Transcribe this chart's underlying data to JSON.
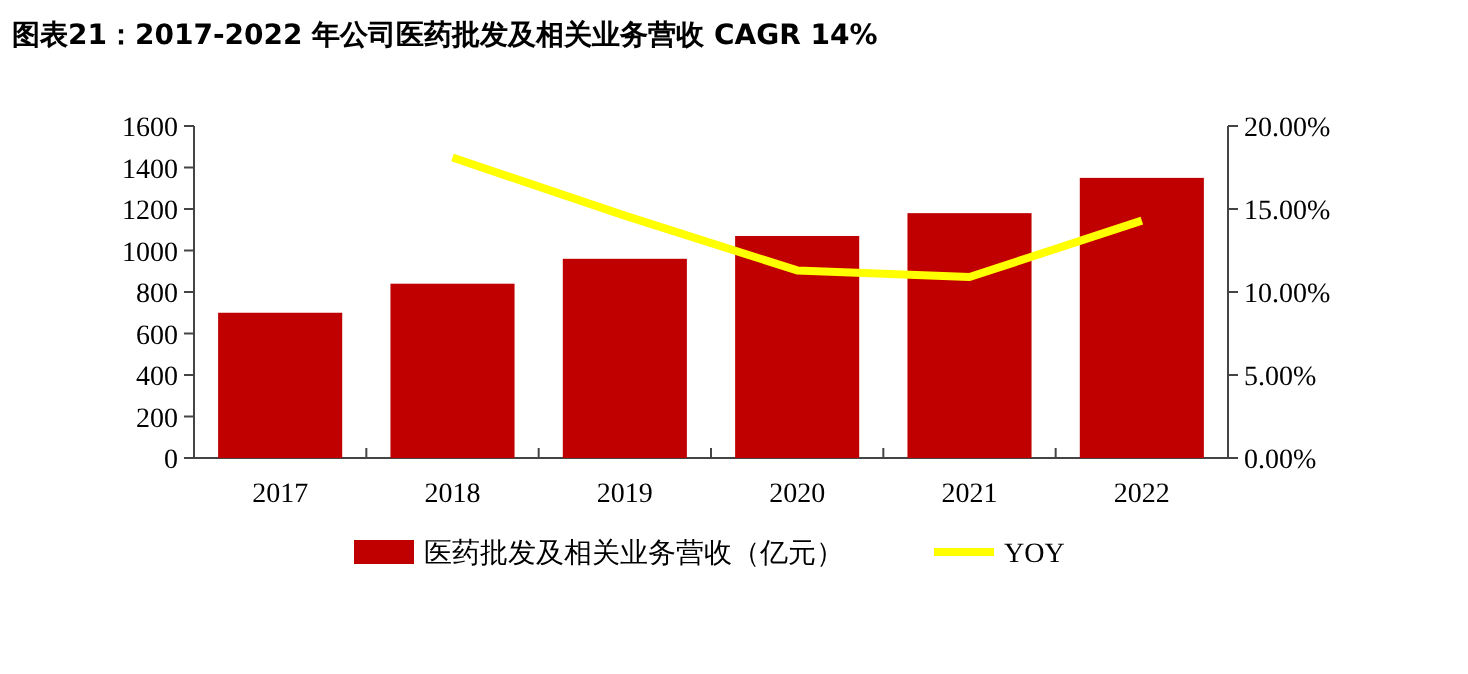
{
  "chart_data": {
    "type": "bar",
    "title": "图表21：2017-2022 年公司医药批发及相关业务营收 CAGR 14%",
    "categories": [
      "2017",
      "2018",
      "2019",
      "2020",
      "2021",
      "2022"
    ],
    "series": [
      {
        "name": "医药批发及相关业务营收（亿元）",
        "color": "#c00000",
        "values": [
          700,
          840,
          960,
          1070,
          1180,
          1350
        ]
      },
      {
        "name": "YOY",
        "type": "line",
        "axis": "y2",
        "color": "#ffff00",
        "values": [
          null,
          18.1,
          14.6,
          11.3,
          10.9,
          14.3
        ]
      }
    ],
    "ylim": [
      0,
      1600
    ],
    "yticks": [
      0,
      200,
      400,
      600,
      800,
      1000,
      1200,
      1400,
      1600
    ],
    "y2lim": [
      0,
      20
    ],
    "y2ticks": [
      {
        "value": 0,
        "label": "0.00%"
      },
      {
        "value": 5,
        "label": "5.00%"
      },
      {
        "value": 10,
        "label": "10.00%"
      },
      {
        "value": 15,
        "label": "15.00%"
      },
      {
        "value": 20,
        "label": "20.00%"
      }
    ],
    "legend": "bottom"
  }
}
